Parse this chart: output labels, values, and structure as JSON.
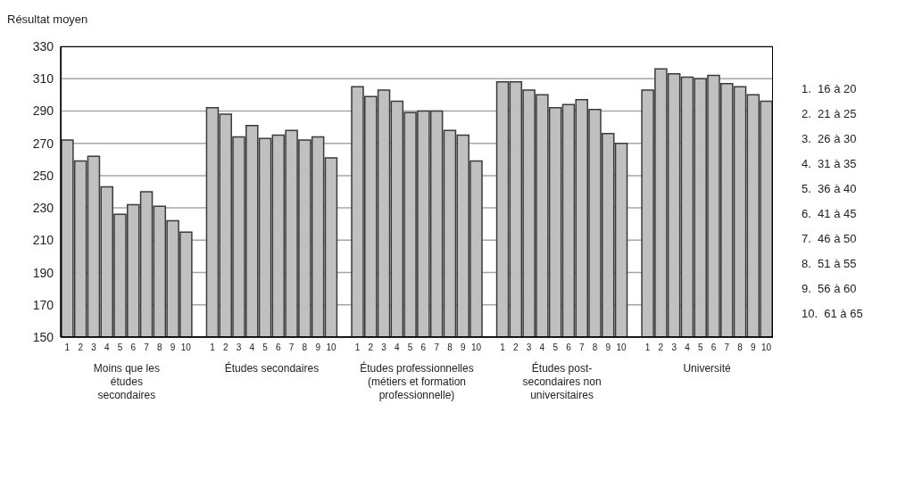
{
  "chart_data": {
    "type": "bar",
    "ylabel": "Résultat moyen",
    "categories": [
      "1",
      "2",
      "3",
      "4",
      "5",
      "6",
      "7",
      "8",
      "9",
      "10",
      null,
      "1",
      "2",
      "3",
      "4",
      "5",
      "6",
      "7",
      "8",
      "9",
      "10",
      null,
      "1",
      "2",
      "3",
      "4",
      "5",
      "6",
      "7",
      "8",
      "9",
      "10",
      null,
      "1",
      "2",
      "3",
      "4",
      "5",
      "6",
      "7",
      "8",
      "9",
      "10",
      null,
      "1",
      "2",
      "3",
      "4",
      "5",
      "6",
      "7",
      "8",
      "9",
      "10"
    ],
    "values": [
      272,
      259,
      262,
      243,
      226,
      232,
      240,
      231,
      222,
      215,
      null,
      292,
      288,
      274,
      281,
      273,
      275,
      278,
      272,
      274,
      261,
      null,
      305,
      299,
      303,
      296,
      289,
      290,
      290,
      278,
      275,
      259,
      null,
      308,
      308,
      303,
      300,
      292,
      294,
      297,
      291,
      276,
      270,
      null,
      303,
      316,
      313,
      311,
      310,
      312,
      307,
      305,
      300,
      296
    ],
    "color": "#c0c0c0",
    "ylim": [
      150,
      330
    ],
    "yticks": [
      150,
      170,
      190,
      210,
      230,
      250,
      270,
      290,
      310,
      330
    ],
    "grid": "y",
    "annotations": [
      "Moins que les études secondaires",
      "Études secondaires",
      "Études professionnelles (métiers et formation professionnelle)",
      "Études post-secondaires non universitaires",
      "Université",
      "1.  16 à 20",
      "2.  21 à 25",
      "3.  26 à 30",
      "4.  31 à 35",
      "5.  36 à 40",
      "6.  41 à 45",
      "7.  46 à 50",
      "8.  51 à 55",
      "9.  56 à 60",
      "10.  61 à 65"
    ]
  }
}
